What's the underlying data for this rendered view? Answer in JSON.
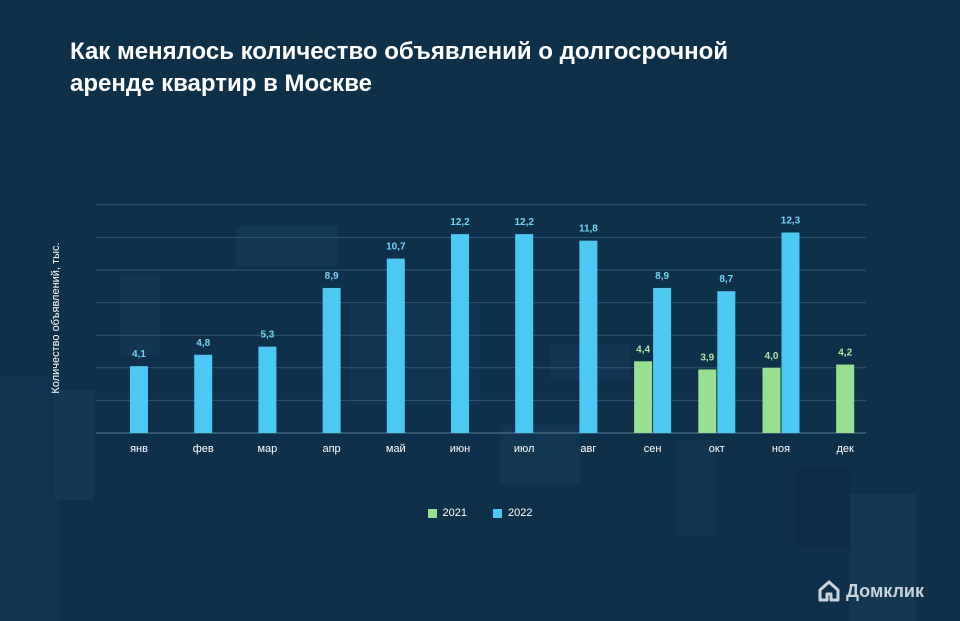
{
  "title": {
    "line1": "Как менялось количество объявлений о долгосрочной",
    "line2": "аренде квартир в Москве"
  },
  "logo": {
    "text": "Домклик",
    "icon": "house-logo-icon"
  },
  "colors": {
    "background": "#0f3049",
    "series_2021": "#97e08f",
    "series_2022": "#4cc9f3",
    "label_2021": "#a7e7a0",
    "label_2022": "#6fd4f7",
    "grid": "#2e5670",
    "text": "#ffffff"
  },
  "chart_data": {
    "type": "bar",
    "title": "Как менялось количество объявлений о долгосрочной аренде квартир в Москве",
    "xlabel": "",
    "ylabel": "Количество объявлений, тыс.",
    "ylim": [
      0,
      14
    ],
    "grid": true,
    "legend_position": "bottom",
    "categories": [
      "янв",
      "фев",
      "мар",
      "апр",
      "май",
      "июн",
      "июл",
      "авг",
      "сен",
      "окт",
      "ноя",
      "дек"
    ],
    "series": [
      {
        "name": "2021",
        "values": [
          null,
          null,
          null,
          null,
          null,
          null,
          null,
          null,
          4.4,
          3.9,
          4.0,
          4.2
        ],
        "labels": [
          "",
          "",
          "",
          "",
          "",
          "",
          "",
          "",
          "4,4",
          "3,9",
          "4,0",
          "4,2"
        ]
      },
      {
        "name": "2022",
        "values": [
          4.1,
          4.8,
          5.3,
          8.9,
          10.7,
          12.2,
          12.2,
          11.8,
          8.9,
          8.7,
          12.3,
          null
        ],
        "labels": [
          "4,1",
          "4,8",
          "5,3",
          "8,9",
          "10,7",
          "12,2",
          "12,2",
          "11,8",
          "8,9",
          "8,7",
          "12,3",
          ""
        ]
      }
    ]
  }
}
